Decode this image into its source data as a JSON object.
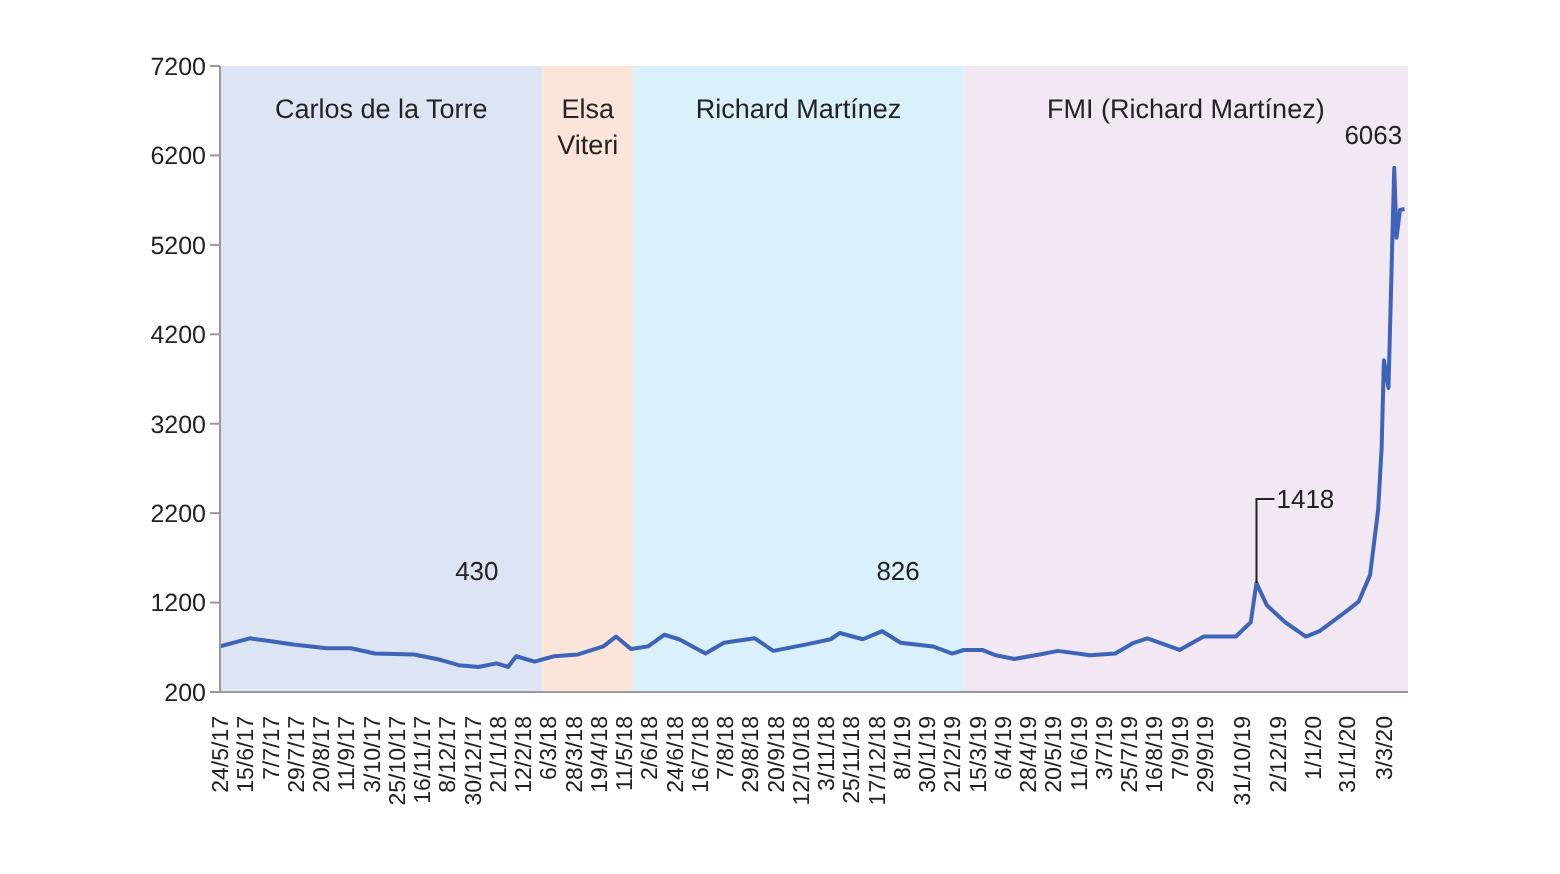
{
  "chart_data": {
    "type": "line",
    "x": [
      "2017-05-24",
      "2017-06-19",
      "2017-07-06",
      "2017-07-27",
      "2017-08-25",
      "2017-09-15",
      "2017-10-06",
      "2017-11-09",
      "2017-12-02",
      "2017-12-18",
      "2018-01-04",
      "2018-01-20",
      "2018-01-30",
      "2018-02-06",
      "2018-02-22",
      "2018-03-11",
      "2018-04-01",
      "2018-04-23",
      "2018-05-04",
      "2018-05-17",
      "2018-06-01",
      "2018-06-15",
      "2018-06-28",
      "2018-07-21",
      "2018-08-06",
      "2018-09-02",
      "2018-09-18",
      "2018-10-16",
      "2018-11-07",
      "2018-11-15",
      "2018-12-05",
      "2018-12-22",
      "2019-01-07",
      "2019-02-04",
      "2019-02-21",
      "2019-03-03",
      "2019-03-19",
      "2019-03-31",
      "2019-04-16",
      "2019-05-08",
      "2019-05-24",
      "2019-06-21",
      "2019-07-13",
      "2019-07-29",
      "2019-08-10",
      "2019-09-07",
      "2019-09-28",
      "2019-10-26",
      "2019-11-08",
      "2019-11-13",
      "2019-11-22",
      "2019-12-08",
      "2019-12-26",
      "2020-01-07",
      "2020-01-29",
      "2020-02-10",
      "2020-02-20",
      "2020-02-27",
      "2020-03-01",
      "2020-03-03",
      "2020-03-07",
      "2020-03-12",
      "2020-03-14",
      "2020-03-17",
      "2020-03-21"
    ],
    "series": [
      {
        "color": "#3d64b8",
        "values": [
          710,
          800,
          770,
          730,
          690,
          690,
          630,
          620,
          560,
          500,
          480,
          520,
          480,
          600,
          540,
          600,
          620,
          710,
          820,
          680,
          710,
          840,
          790,
          630,
          750,
          800,
          660,
          730,
          790,
          860,
          790,
          880,
          750,
          710,
          630,
          670,
          670,
          610,
          570,
          620,
          660,
          610,
          630,
          750,
          800,
          670,
          820,
          820,
          980,
          1418,
          1170,
          980,
          820,
          880,
          1090,
          1210,
          1510,
          2240,
          2920,
          3910,
          3600,
          6063,
          5280,
          5590,
          5600
        ]
      }
    ],
    "xlim": [
      "2017-05-24",
      "2020-03-24"
    ],
    "xticks": [
      {
        "value": "2017-05-24",
        "label": "24/5/17"
      },
      {
        "value": "2017-06-15",
        "label": "15/6/17"
      },
      {
        "value": "2017-07-07",
        "label": "7/7/17"
      },
      {
        "value": "2017-07-29",
        "label": "29/7/17"
      },
      {
        "value": "2017-08-20",
        "label": "20/8/17"
      },
      {
        "value": "2017-09-11",
        "label": "11/9/17"
      },
      {
        "value": "2017-10-03",
        "label": "3/10/17"
      },
      {
        "value": "2017-10-25",
        "label": "25/10/17"
      },
      {
        "value": "2017-11-16",
        "label": "16/11/17"
      },
      {
        "value": "2017-12-08",
        "label": "8/12/17"
      },
      {
        "value": "2017-12-30",
        "label": "30/12/17"
      },
      {
        "value": "2018-01-21",
        "label": "21/1/18"
      },
      {
        "value": "2018-02-12",
        "label": "12/2/18"
      },
      {
        "value": "2018-03-06",
        "label": "6/3/18"
      },
      {
        "value": "2018-03-28",
        "label": "28/3/18"
      },
      {
        "value": "2018-04-19",
        "label": "19/4/18"
      },
      {
        "value": "2018-05-11",
        "label": "11/5/18"
      },
      {
        "value": "2018-06-02",
        "label": "2/6/18"
      },
      {
        "value": "2018-06-24",
        "label": "24/6/18"
      },
      {
        "value": "2018-07-16",
        "label": "16/7/18"
      },
      {
        "value": "2018-08-07",
        "label": "7/8/18"
      },
      {
        "value": "2018-08-29",
        "label": "29/8/18"
      },
      {
        "value": "2018-09-20",
        "label": "20/9/18"
      },
      {
        "value": "2018-10-12",
        "label": "12/10/18"
      },
      {
        "value": "2018-11-03",
        "label": "3/11/18"
      },
      {
        "value": "2018-11-25",
        "label": "25/11/18"
      },
      {
        "value": "2018-12-17",
        "label": "17/12/18"
      },
      {
        "value": "2019-01-08",
        "label": "8/1/19"
      },
      {
        "value": "2019-01-30",
        "label": "30/1/19"
      },
      {
        "value": "2019-02-21",
        "label": "21/2/19"
      },
      {
        "value": "2019-03-15",
        "label": "15/3/19"
      },
      {
        "value": "2019-04-06",
        "label": "6/4/19"
      },
      {
        "value": "2019-04-28",
        "label": "28/4/19"
      },
      {
        "value": "2019-05-20",
        "label": "20/5/19"
      },
      {
        "value": "2019-06-11",
        "label": "11/6/19"
      },
      {
        "value": "2019-07-03",
        "label": "3/7/19"
      },
      {
        "value": "2019-07-25",
        "label": "25/7/19"
      },
      {
        "value": "2019-08-16",
        "label": "16/8/19"
      },
      {
        "value": "2019-09-07",
        "label": "7/9/19"
      },
      {
        "value": "2019-09-29",
        "label": "29/9/19"
      },
      {
        "value": "2019-10-31",
        "label": "31/10/19"
      },
      {
        "value": "2019-12-02",
        "label": "2/12/19"
      },
      {
        "value": "2020-01-01",
        "label": "1/1/20"
      },
      {
        "value": "2020-01-31",
        "label": "31/1/20"
      },
      {
        "value": "2020-03-03",
        "label": "3/3/20"
      }
    ],
    "ylim": [
      200,
      7200
    ],
    "yticks": [
      200,
      1200,
      2200,
      3200,
      4200,
      5200,
      6200,
      7200
    ],
    "grid": false,
    "legend": false,
    "bands": [
      {
        "axis": "x",
        "from": "2017-05-24",
        "to": "2018-03-01",
        "label": "Carlos de la Torre",
        "color": "#dde4f3"
      },
      {
        "axis": "x",
        "from": "2018-03-01",
        "to": "2018-05-19",
        "label": "Elsa Viteri",
        "color": "#fbe4da"
      },
      {
        "axis": "x",
        "from": "2018-05-19",
        "to": "2019-03-03",
        "label": "Richard Martínez",
        "color": "#daf0fb"
      },
      {
        "axis": "x",
        "from": "2019-03-03",
        "to": "2020-03-24",
        "label": "FMI (Richard Martínez)",
        "color": "#f1e8f3"
      }
    ],
    "annotations": [
      "430",
      "826",
      {
        "text": "1418",
        "x": "2019-11-13",
        "y": 1418
      },
      {
        "text": "6063",
        "x": "2020-03-12",
        "y": 6063
      }
    ]
  }
}
